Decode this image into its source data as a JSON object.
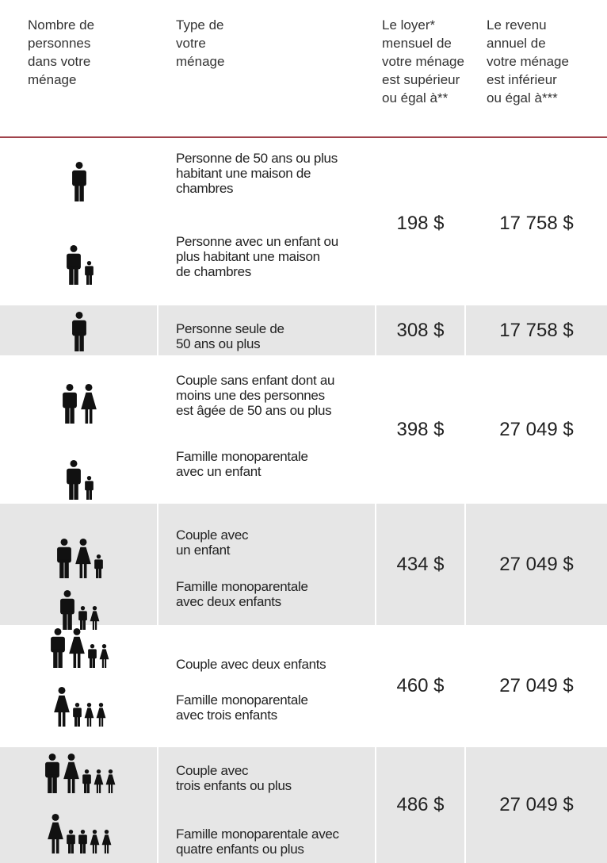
{
  "header": {
    "columns": [
      [
        "Nombre de",
        "personnes",
        "dans votre",
        "ménage"
      ],
      [
        "Type de",
        "votre",
        "ménage"
      ],
      [
        "Le loyer*",
        "mensuel de",
        "votre ménage",
        "est supérieur",
        "ou égal à**"
      ],
      [
        "Le revenu",
        "annuel de",
        "votre ménage",
        "est inférieur",
        "ou égal à***"
      ]
    ]
  },
  "table": {
    "rows": [
      {
        "descriptions": [
          [
            "Personne de 50 ans ou plus",
            "habitant une maison de",
            "chambres"
          ],
          [
            "Personne avec un enfant ou",
            "plus habitant une maison",
            "de chambres"
          ]
        ],
        "rent": "198 $",
        "income": "17 758 $"
      },
      {
        "descriptions": [
          [
            "Personne seule de",
            "50 ans ou plus"
          ]
        ],
        "rent": "308 $",
        "income": "17 758 $"
      },
      {
        "descriptions": [
          [
            "Couple sans enfant dont au",
            "moins une des personnes",
            "est âgée de 50 ans ou plus"
          ],
          [
            "Famille monoparentale",
            "avec un enfant"
          ]
        ],
        "rent": "398 $",
        "income": "27 049 $"
      },
      {
        "descriptions": [
          [
            "Couple avec",
            "un enfant"
          ],
          [
            "Famille monoparentale",
            "avec deux enfants"
          ]
        ],
        "rent": "434 $",
        "income": "27 049 $"
      },
      {
        "descriptions": [
          [
            "Couple avec deux enfants"
          ],
          [
            "Famille monoparentale",
            "avec trois enfants"
          ]
        ],
        "rent": "460 $",
        "income": "27 049 $"
      },
      {
        "descriptions": [
          [
            "Couple avec",
            "trois enfants ou plus"
          ],
          [
            "Famille monoparentale avec",
            "quatre enfants ou plus"
          ]
        ],
        "rent": "486 $",
        "income": "27 049 $"
      }
    ]
  }
}
